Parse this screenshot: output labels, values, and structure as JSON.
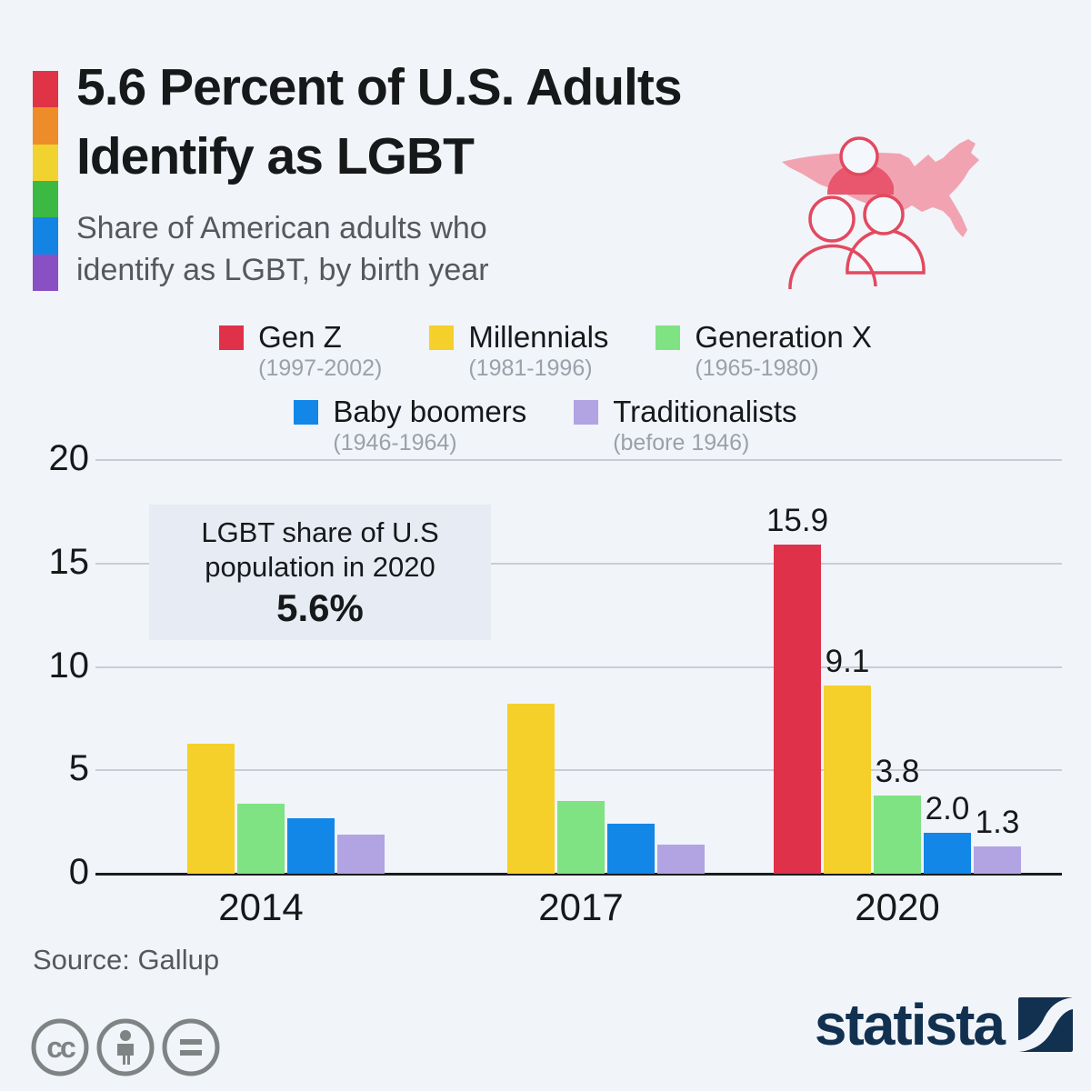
{
  "header": {
    "title_line1": "5.6 Percent of U.S. Adults",
    "title_line2": "Identify as LGBT",
    "subtitle_line1": "Share of American adults who",
    "subtitle_line2": "identify as LGBT, by birth year",
    "rainbow_colors": [
      "#e03446",
      "#ee8c2a",
      "#f0d32e",
      "#3cb943",
      "#1484e4",
      "#8950c4"
    ]
  },
  "chart_data": {
    "type": "bar",
    "title": "Share of American adults who identify as LGBT, by birth year",
    "categories": [
      "2014",
      "2017",
      "2020"
    ],
    "series": [
      {
        "name": "Gen Z",
        "range": "(1997-2002)",
        "color": "#e0314b",
        "values": [
          null,
          null,
          15.9
        ]
      },
      {
        "name": "Millennials",
        "range": "(1981-1996)",
        "color": "#f5d02b",
        "values": [
          6.3,
          8.2,
          9.1
        ]
      },
      {
        "name": "Generation X",
        "range": "(1965-1980)",
        "color": "#7fe384",
        "values": [
          3.4,
          3.5,
          3.8
        ]
      },
      {
        "name": "Baby boomers",
        "range": "(1946-1964)",
        "color": "#1287e8",
        "values": [
          2.7,
          2.4,
          2.0
        ]
      },
      {
        "name": "Traditionalists",
        "range": "(before 1946)",
        "color": "#b2a3e2",
        "values": [
          1.9,
          1.4,
          1.3
        ]
      }
    ],
    "ylim": [
      0,
      20
    ],
    "yticks": [
      0,
      5,
      10,
      15,
      20
    ],
    "xlabel": "",
    "ylabel": "",
    "grid": true,
    "legend_position": "top",
    "value_labels_category": "2020"
  },
  "annotation": {
    "line1": "LGBT share of U.S",
    "line2": "population in 2020",
    "value": "5.6%"
  },
  "footer": {
    "source": "Source: Gallup",
    "license_icons": [
      "cc-icon",
      "cc-by-person-icon",
      "cc-nd-equals-icon"
    ],
    "logo_text": "statista"
  },
  "colors": {
    "background": "#f1f4f9",
    "annotation_box": "#e6ebf4",
    "gridline": "#c9cdd3",
    "axis_line": "#1b1c1e",
    "title_text": "#17181a",
    "subtitle_text": "#55585c",
    "legend_range_text": "#9aa1a9",
    "map_pink": "#f2a3b2",
    "map_accent": "#e2495f",
    "statista_navy": "#123050",
    "cc_gray": "#7e8483"
  }
}
